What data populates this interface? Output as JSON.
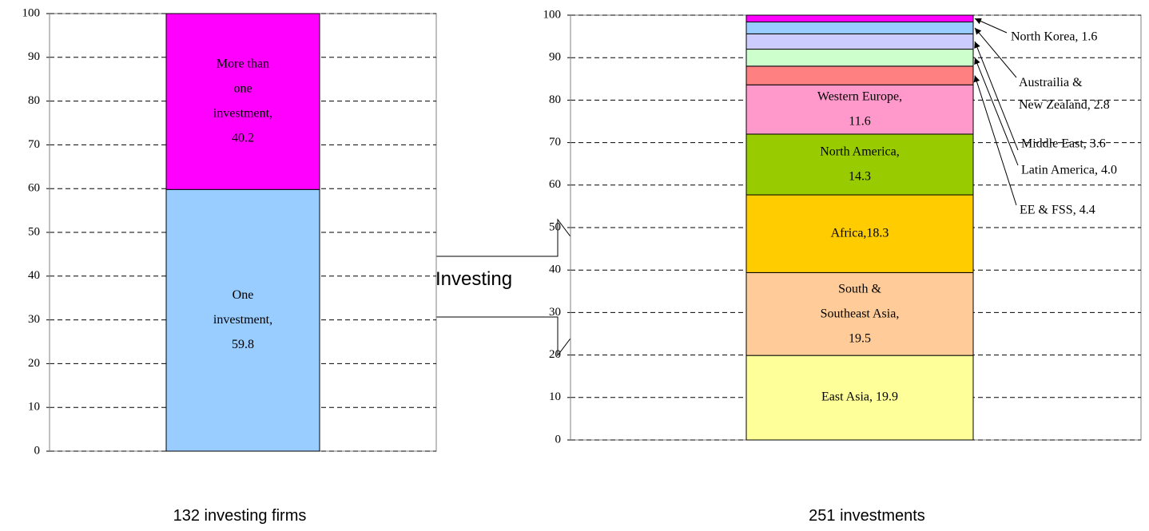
{
  "annotation": "Investing",
  "chart_data": [
    {
      "type": "bar",
      "stacked": true,
      "categories": [
        "132 investing firms"
      ],
      "ylim": [
        0,
        100
      ],
      "yticks": [
        0,
        10,
        20,
        30,
        40,
        50,
        60,
        70,
        80,
        90,
        100
      ],
      "grid": true,
      "series": [
        {
          "name": "One investment",
          "color": "#99ccff",
          "values": [
            59.8
          ],
          "value_labels": [
            "One\ninvestment,\n59.8"
          ]
        },
        {
          "name": "More than one investment",
          "color": "#ff00ff",
          "values": [
            40.2
          ],
          "value_labels": [
            "More than\none\ninvestment,\n40.2"
          ]
        }
      ]
    },
    {
      "type": "bar",
      "stacked": true,
      "categories": [
        "251 investments"
      ],
      "ylim": [
        0,
        100
      ],
      "yticks": [
        0,
        10,
        20,
        30,
        40,
        50,
        60,
        70,
        80,
        90,
        100
      ],
      "grid": true,
      "series": [
        {
          "name": "East Asia",
          "color": "#ffff99",
          "values": [
            19.9
          ],
          "value_labels": [
            "East Asia, 19.9"
          ]
        },
        {
          "name": "South & Southeast Asia",
          "color": "#ffcc99",
          "values": [
            19.5
          ],
          "value_labels": [
            "South &\nSoutheast Asia,\n19.5"
          ]
        },
        {
          "name": "Africa",
          "color": "#ffcc00",
          "values": [
            18.3
          ],
          "value_labels": [
            "Africa,18.3"
          ]
        },
        {
          "name": "North America",
          "color": "#99cc00",
          "values": [
            14.3
          ],
          "value_labels": [
            "North America,\n14.3"
          ]
        },
        {
          "name": "Western Europe",
          "color": "#ff99cc",
          "values": [
            11.6
          ],
          "value_labels": [
            "Western Europe,\n11.6"
          ]
        },
        {
          "name": "EE & FSS",
          "color": "#ff8080",
          "values": [
            4.4
          ],
          "value_labels": [
            "EE & FSS, 4.4"
          ],
          "label_outside": true
        },
        {
          "name": "Latin America",
          "color": "#ccffcc",
          "values": [
            4.0
          ],
          "value_labels": [
            "Latin America, 4.0"
          ],
          "label_outside": true
        },
        {
          "name": "Middle East",
          "color": "#ccccff",
          "values": [
            3.6
          ],
          "value_labels": [
            "Middle East, 3.6"
          ],
          "label_outside": true
        },
        {
          "name": "Austrailia & New Zealand",
          "color": "#99ccff",
          "values": [
            2.8
          ],
          "value_labels": [
            "Austrailia &\nNew Zealand, 2.8"
          ],
          "label_outside": true
        },
        {
          "name": "North Korea",
          "color": "#ff00ff",
          "values": [
            1.6
          ],
          "value_labels": [
            "North Korea, 1.6"
          ],
          "label_outside": true
        }
      ]
    }
  ]
}
